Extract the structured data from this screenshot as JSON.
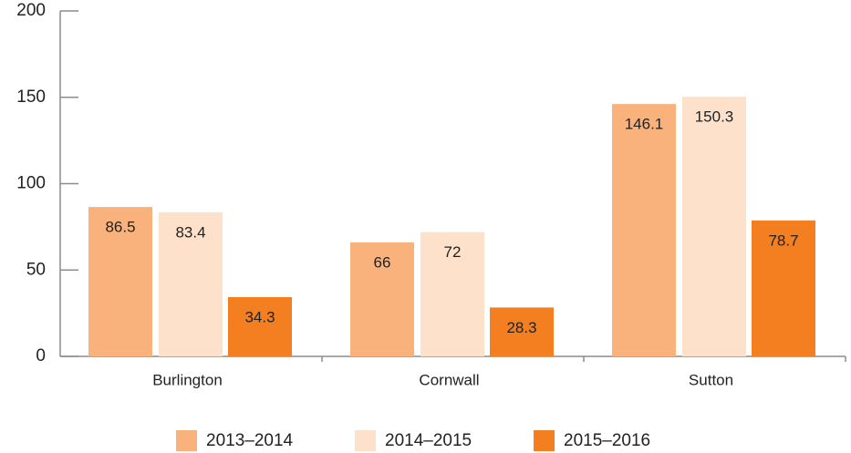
{
  "chart_data": {
    "type": "bar",
    "categories": [
      "Burlington",
      "Cornwall",
      "Sutton"
    ],
    "series": [
      {
        "name": "2013–2014",
        "color": "#f9b27c",
        "values": [
          86.5,
          66,
          146.1
        ]
      },
      {
        "name": "2014–2015",
        "color": "#fde1ca",
        "values": [
          83.4,
          72,
          150.3
        ]
      },
      {
        "name": "2015–2016",
        "color": "#f37f21",
        "values": [
          34.3,
          28.3,
          78.7
        ]
      }
    ],
    "ylim": [
      0,
      200
    ],
    "yticks": [
      0,
      50,
      100,
      150,
      200
    ],
    "grid": false,
    "legend": "bottom"
  }
}
